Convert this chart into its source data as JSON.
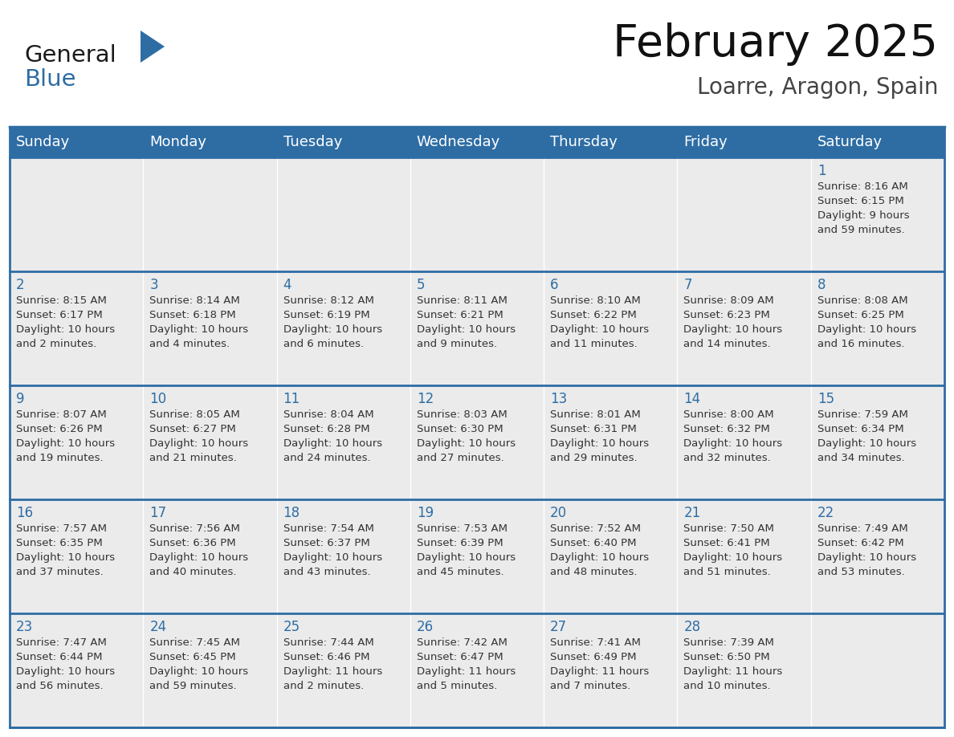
{
  "title": "February 2025",
  "subtitle": "Loarre, Aragon, Spain",
  "days_of_week": [
    "Sunday",
    "Monday",
    "Tuesday",
    "Wednesday",
    "Thursday",
    "Friday",
    "Saturday"
  ],
  "header_bg_color": "#2E6DA4",
  "header_text_color": "#FFFFFF",
  "cell_bg_color": "#EBEBEB",
  "divider_color": "#2E6DA4",
  "day_number_color": "#2E6DA4",
  "info_text_color": "#333333",
  "outer_border_color": "#2E6DA4",
  "logo_general_color": "#1a1a1a",
  "logo_blue_color": "#2E6DA4",
  "calendar_data": [
    {
      "day": 1,
      "row": 0,
      "col": 6,
      "sunrise": "8:16 AM",
      "sunset": "6:15 PM",
      "daylight": "9 hours and 59 minutes."
    },
    {
      "day": 2,
      "row": 1,
      "col": 0,
      "sunrise": "8:15 AM",
      "sunset": "6:17 PM",
      "daylight": "10 hours and 2 minutes."
    },
    {
      "day": 3,
      "row": 1,
      "col": 1,
      "sunrise": "8:14 AM",
      "sunset": "6:18 PM",
      "daylight": "10 hours and 4 minutes."
    },
    {
      "day": 4,
      "row": 1,
      "col": 2,
      "sunrise": "8:12 AM",
      "sunset": "6:19 PM",
      "daylight": "10 hours and 6 minutes."
    },
    {
      "day": 5,
      "row": 1,
      "col": 3,
      "sunrise": "8:11 AM",
      "sunset": "6:21 PM",
      "daylight": "10 hours and 9 minutes."
    },
    {
      "day": 6,
      "row": 1,
      "col": 4,
      "sunrise": "8:10 AM",
      "sunset": "6:22 PM",
      "daylight": "10 hours and 11 minutes."
    },
    {
      "day": 7,
      "row": 1,
      "col": 5,
      "sunrise": "8:09 AM",
      "sunset": "6:23 PM",
      "daylight": "10 hours and 14 minutes."
    },
    {
      "day": 8,
      "row": 1,
      "col": 6,
      "sunrise": "8:08 AM",
      "sunset": "6:25 PM",
      "daylight": "10 hours and 16 minutes."
    },
    {
      "day": 9,
      "row": 2,
      "col": 0,
      "sunrise": "8:07 AM",
      "sunset": "6:26 PM",
      "daylight": "10 hours and 19 minutes."
    },
    {
      "day": 10,
      "row": 2,
      "col": 1,
      "sunrise": "8:05 AM",
      "sunset": "6:27 PM",
      "daylight": "10 hours and 21 minutes."
    },
    {
      "day": 11,
      "row": 2,
      "col": 2,
      "sunrise": "8:04 AM",
      "sunset": "6:28 PM",
      "daylight": "10 hours and 24 minutes."
    },
    {
      "day": 12,
      "row": 2,
      "col": 3,
      "sunrise": "8:03 AM",
      "sunset": "6:30 PM",
      "daylight": "10 hours and 27 minutes."
    },
    {
      "day": 13,
      "row": 2,
      "col": 4,
      "sunrise": "8:01 AM",
      "sunset": "6:31 PM",
      "daylight": "10 hours and 29 minutes."
    },
    {
      "day": 14,
      "row": 2,
      "col": 5,
      "sunrise": "8:00 AM",
      "sunset": "6:32 PM",
      "daylight": "10 hours and 32 minutes."
    },
    {
      "day": 15,
      "row": 2,
      "col": 6,
      "sunrise": "7:59 AM",
      "sunset": "6:34 PM",
      "daylight": "10 hours and 34 minutes."
    },
    {
      "day": 16,
      "row": 3,
      "col": 0,
      "sunrise": "7:57 AM",
      "sunset": "6:35 PM",
      "daylight": "10 hours and 37 minutes."
    },
    {
      "day": 17,
      "row": 3,
      "col": 1,
      "sunrise": "7:56 AM",
      "sunset": "6:36 PM",
      "daylight": "10 hours and 40 minutes."
    },
    {
      "day": 18,
      "row": 3,
      "col": 2,
      "sunrise": "7:54 AM",
      "sunset": "6:37 PM",
      "daylight": "10 hours and 43 minutes."
    },
    {
      "day": 19,
      "row": 3,
      "col": 3,
      "sunrise": "7:53 AM",
      "sunset": "6:39 PM",
      "daylight": "10 hours and 45 minutes."
    },
    {
      "day": 20,
      "row": 3,
      "col": 4,
      "sunrise": "7:52 AM",
      "sunset": "6:40 PM",
      "daylight": "10 hours and 48 minutes."
    },
    {
      "day": 21,
      "row": 3,
      "col": 5,
      "sunrise": "7:50 AM",
      "sunset": "6:41 PM",
      "daylight": "10 hours and 51 minutes."
    },
    {
      "day": 22,
      "row": 3,
      "col": 6,
      "sunrise": "7:49 AM",
      "sunset": "6:42 PM",
      "daylight": "10 hours and 53 minutes."
    },
    {
      "day": 23,
      "row": 4,
      "col": 0,
      "sunrise": "7:47 AM",
      "sunset": "6:44 PM",
      "daylight": "10 hours and 56 minutes."
    },
    {
      "day": 24,
      "row": 4,
      "col": 1,
      "sunrise": "7:45 AM",
      "sunset": "6:45 PM",
      "daylight": "10 hours and 59 minutes."
    },
    {
      "day": 25,
      "row": 4,
      "col": 2,
      "sunrise": "7:44 AM",
      "sunset": "6:46 PM",
      "daylight": "11 hours and 2 minutes."
    },
    {
      "day": 26,
      "row": 4,
      "col": 3,
      "sunrise": "7:42 AM",
      "sunset": "6:47 PM",
      "daylight": "11 hours and 5 minutes."
    },
    {
      "day": 27,
      "row": 4,
      "col": 4,
      "sunrise": "7:41 AM",
      "sunset": "6:49 PM",
      "daylight": "11 hours and 7 minutes."
    },
    {
      "day": 28,
      "row": 4,
      "col": 5,
      "sunrise": "7:39 AM",
      "sunset": "6:50 PM",
      "daylight": "11 hours and 10 minutes."
    }
  ],
  "num_rows": 5,
  "num_cols": 7,
  "fig_width": 11.88,
  "fig_height": 9.18,
  "dpi": 100
}
